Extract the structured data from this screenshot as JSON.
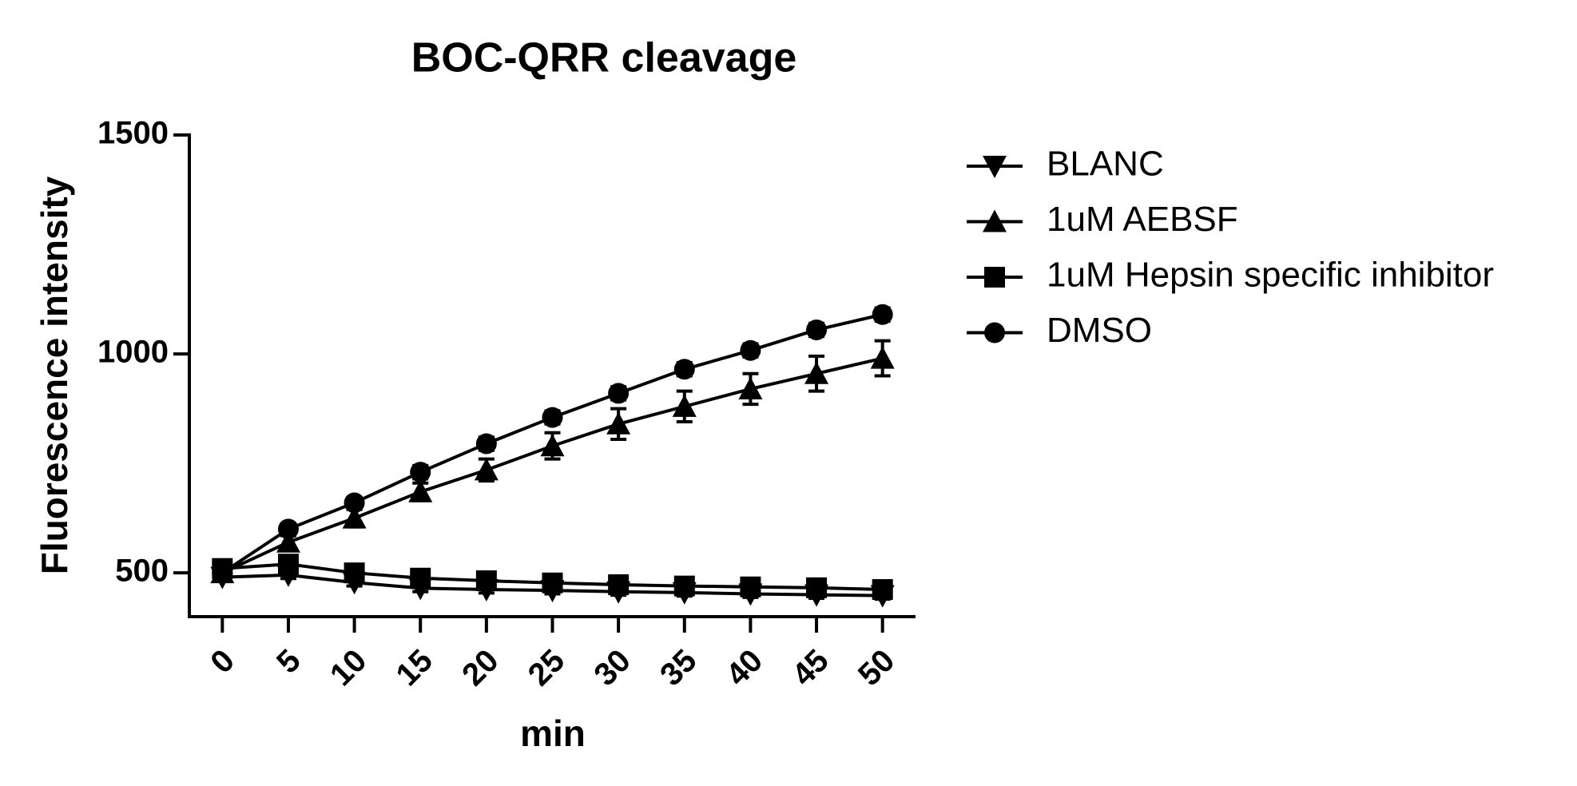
{
  "chart_data": {
    "type": "line",
    "title": "BOC-QRR cleavage",
    "x_label": "min",
    "y_label": "Fluorescence intensity",
    "x": [
      0,
      5,
      10,
      15,
      20,
      25,
      30,
      35,
      40,
      45,
      50
    ],
    "xlim": [
      -2.5,
      52.5
    ],
    "xticks": [
      0,
      5,
      10,
      15,
      20,
      25,
      30,
      35,
      40,
      45,
      50
    ],
    "ylim": [
      400,
      1500
    ],
    "yticks": [
      500,
      1000,
      1500
    ],
    "legend": "right",
    "series": [
      {
        "name": "BLANC",
        "marker": "triangle-down",
        "color": "#000000",
        "values": [
          490,
          495,
          478,
          465,
          462,
          460,
          457,
          455,
          452,
          450,
          448
        ],
        "errors": [
          8,
          8,
          8,
          8,
          8,
          8,
          8,
          8,
          8,
          8,
          8
        ]
      },
      {
        "name": "1uM AEBSF",
        "marker": "triangle-up",
        "color": "#000000",
        "values": [
          500,
          570,
          625,
          685,
          735,
          790,
          840,
          880,
          920,
          955,
          990
        ],
        "errors": [
          10,
          15,
          20,
          20,
          25,
          30,
          35,
          35,
          35,
          40,
          40
        ]
      },
      {
        "name": "1uM Hepsin specific inhibitor",
        "marker": "square",
        "color": "#000000",
        "values": [
          510,
          520,
          500,
          488,
          482,
          477,
          473,
          470,
          468,
          466,
          462
        ],
        "errors": [
          8,
          8,
          8,
          8,
          8,
          8,
          8,
          8,
          8,
          8,
          8
        ]
      },
      {
        "name": "DMSO",
        "marker": "circle",
        "color": "#000000",
        "values": [
          500,
          600,
          660,
          730,
          795,
          855,
          910,
          965,
          1008,
          1055,
          1090
        ],
        "errors": [
          10,
          12,
          12,
          15,
          15,
          15,
          15,
          15,
          15,
          15,
          15
        ]
      }
    ]
  }
}
